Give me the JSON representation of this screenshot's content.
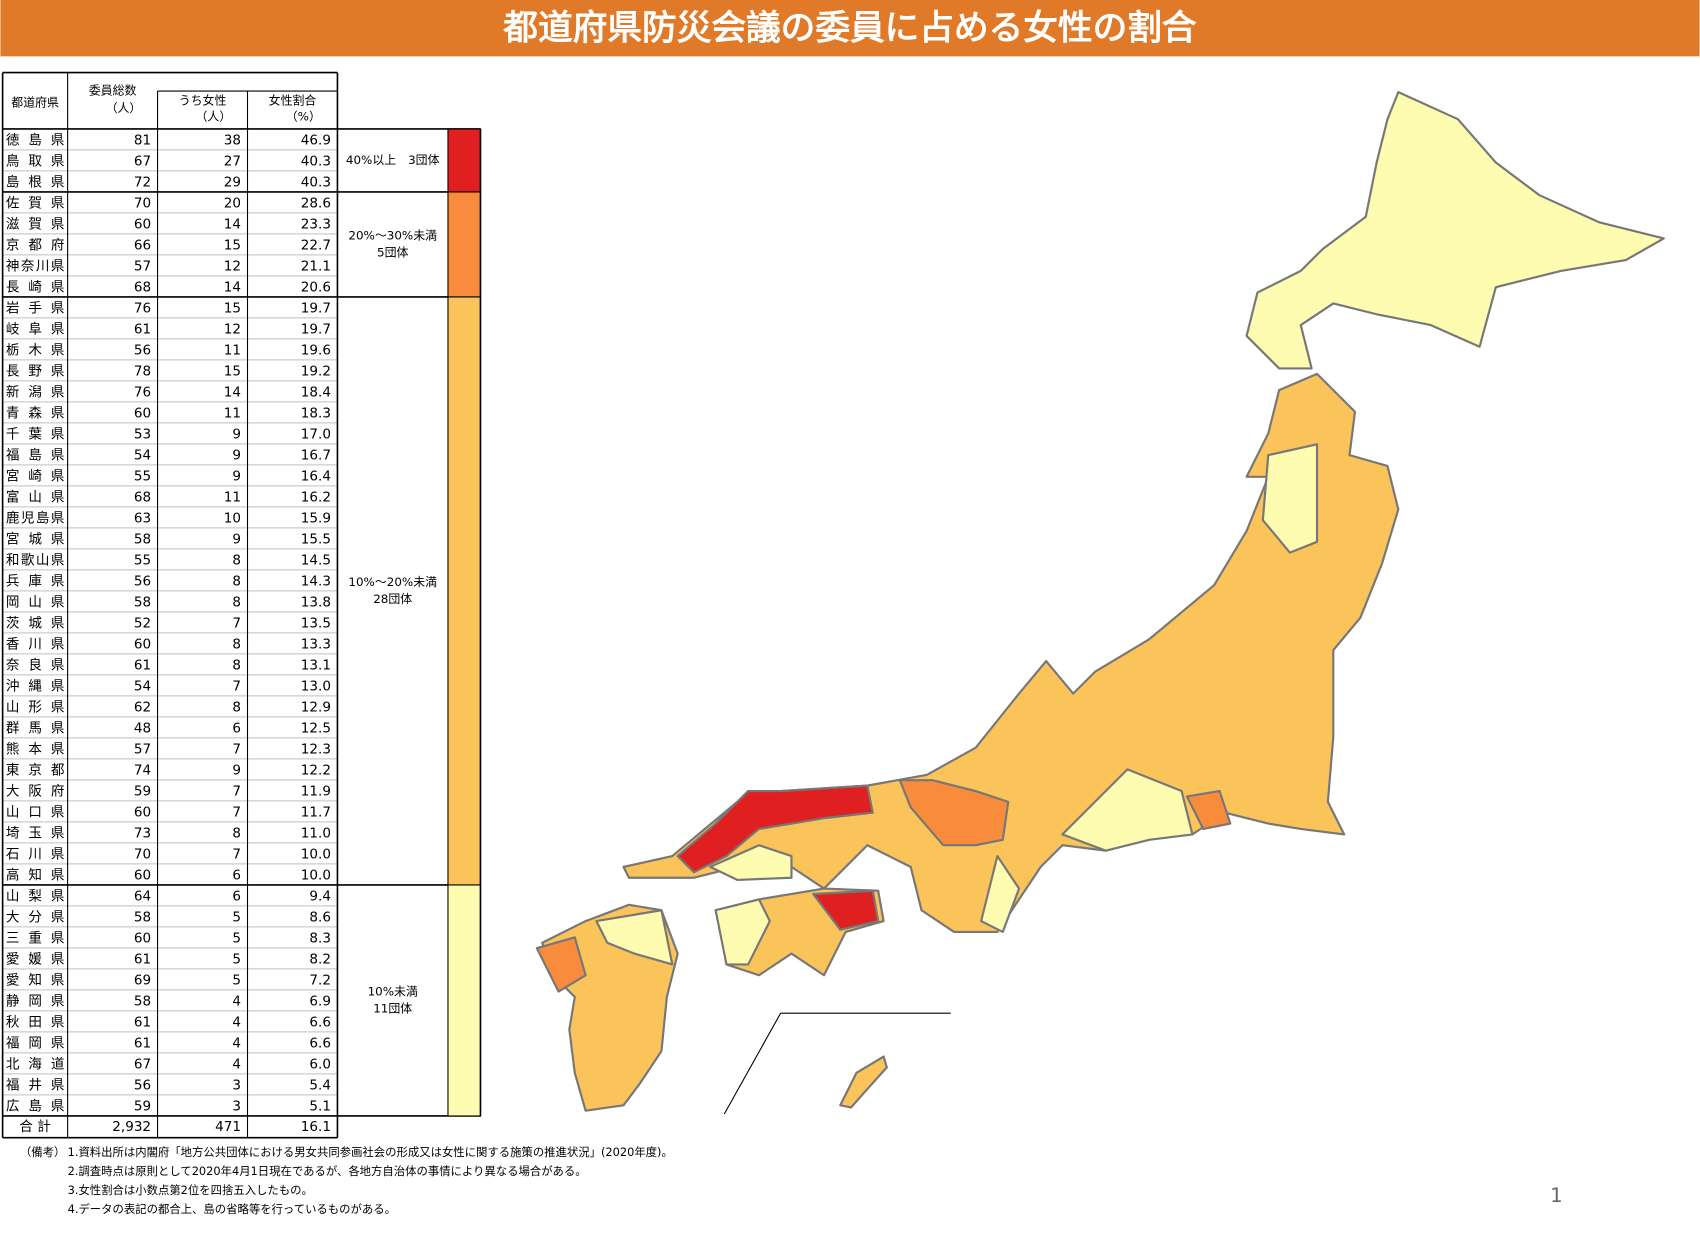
{
  "title": "都道府県防災会議の委員に占める女性の割合",
  "table": {
    "header": {
      "prefecture": "都道府県",
      "total": [
        "委員総数",
        "（人）"
      ],
      "women": [
        "うち女性",
        "（人）"
      ],
      "ratio": [
        "女性割合",
        "（%）"
      ]
    },
    "groups": [
      {
        "label": [
          "40%以上　3団体"
        ],
        "color": "#e02020",
        "rows": [
          [
            "徳 島 県",
            "81",
            "38",
            "46.9"
          ],
          [
            "鳥 取 県",
            "67",
            "27",
            "40.3"
          ],
          [
            "島 根 県",
            "72",
            "29",
            "40.3"
          ]
        ]
      },
      {
        "label": [
          "20%～30%未満",
          "5団体"
        ],
        "color": "#f98c3c",
        "rows": [
          [
            "佐 賀 県",
            "70",
            "20",
            "28.6"
          ],
          [
            "滋 賀 県",
            "60",
            "14",
            "23.3"
          ],
          [
            "京 都 府",
            "66",
            "15",
            "22.7"
          ],
          [
            "神奈川県",
            "57",
            "12",
            "21.1"
          ],
          [
            "長 崎 県",
            "68",
            "14",
            "20.6"
          ]
        ]
      },
      {
        "label": [
          "10%～20%未満",
          "28団体"
        ],
        "color": "#fac45a",
        "rows": [
          [
            "岩 手 県",
            "76",
            "15",
            "19.7"
          ],
          [
            "岐 阜 県",
            "61",
            "12",
            "19.7"
          ],
          [
            "栃 木 県",
            "56",
            "11",
            "19.6"
          ],
          [
            "長 野 県",
            "78",
            "15",
            "19.2"
          ],
          [
            "新 潟 県",
            "76",
            "14",
            "18.4"
          ],
          [
            "青 森 県",
            "60",
            "11",
            "18.3"
          ],
          [
            "千 葉 県",
            "53",
            "9",
            "17.0"
          ],
          [
            "福 島 県",
            "54",
            "9",
            "16.7"
          ],
          [
            "宮 崎 県",
            "55",
            "9",
            "16.4"
          ],
          [
            "富 山 県",
            "68",
            "11",
            "16.2"
          ],
          [
            "鹿児島県",
            "63",
            "10",
            "15.9"
          ],
          [
            "宮 城 県",
            "58",
            "9",
            "15.5"
          ],
          [
            "和歌山県",
            "55",
            "8",
            "14.5"
          ],
          [
            "兵 庫 県",
            "56",
            "8",
            "14.3"
          ],
          [
            "岡 山 県",
            "58",
            "8",
            "13.8"
          ],
          [
            "茨 城 県",
            "52",
            "7",
            "13.5"
          ],
          [
            "香 川 県",
            "60",
            "8",
            "13.3"
          ],
          [
            "奈 良 県",
            "61",
            "8",
            "13.1"
          ],
          [
            "沖 縄 県",
            "54",
            "7",
            "13.0"
          ],
          [
            "山 形 県",
            "62",
            "8",
            "12.9"
          ],
          [
            "群 馬 県",
            "48",
            "6",
            "12.5"
          ],
          [
            "熊 本 県",
            "57",
            "7",
            "12.3"
          ],
          [
            "東 京 都",
            "74",
            "9",
            "12.2"
          ],
          [
            "大 阪 府",
            "59",
            "7",
            "11.9"
          ],
          [
            "山 口 県",
            "60",
            "7",
            "11.7"
          ],
          [
            "埼 玉 県",
            "73",
            "8",
            "11.0"
          ],
          [
            "石 川 県",
            "70",
            "7",
            "10.0"
          ],
          [
            "高 知 県",
            "60",
            "6",
            "10.0"
          ]
        ]
      },
      {
        "label": [
          "10%未満",
          "11団体"
        ],
        "color": "#fefcb0",
        "rows": [
          [
            "山 梨 県",
            "64",
            "6",
            "9.4"
          ],
          [
            "大 分 県",
            "58",
            "5",
            "8.6"
          ],
          [
            "三 重 県",
            "60",
            "5",
            "8.3"
          ],
          [
            "愛 媛 県",
            "61",
            "5",
            "8.2"
          ],
          [
            "愛 知 県",
            "69",
            "5",
            "7.2"
          ],
          [
            "静 岡 県",
            "58",
            "4",
            "6.9"
          ],
          [
            "秋 田 県",
            "61",
            "4",
            "6.6"
          ],
          [
            "福 岡 県",
            "61",
            "4",
            "6.6"
          ],
          [
            "北 海 道",
            "67",
            "4",
            "6.0"
          ],
          [
            "福 井 県",
            "56",
            "3",
            "5.4"
          ],
          [
            "広 島 県",
            "59",
            "3",
            "5.1"
          ]
        ]
      }
    ],
    "total_row": [
      "合 計",
      "2,932",
      "471",
      "16.1"
    ]
  },
  "notes": {
    "label": "（備考）",
    "items": [
      "1.資料出所は内閣府「地方公共団体における男女共同参画社会の形成又は女性に関する施策の推進状況」(2020年度)。",
      "2.調査時点は原則として2020年4月1日現在であるが、各地方自治体の事情により異なる場合がある。",
      "3.女性割合は小数点第2位を四捨五入したもの。",
      "4.データの表記の都合上、島の省略等を行っているものがある。"
    ]
  },
  "page_number": "1"
}
